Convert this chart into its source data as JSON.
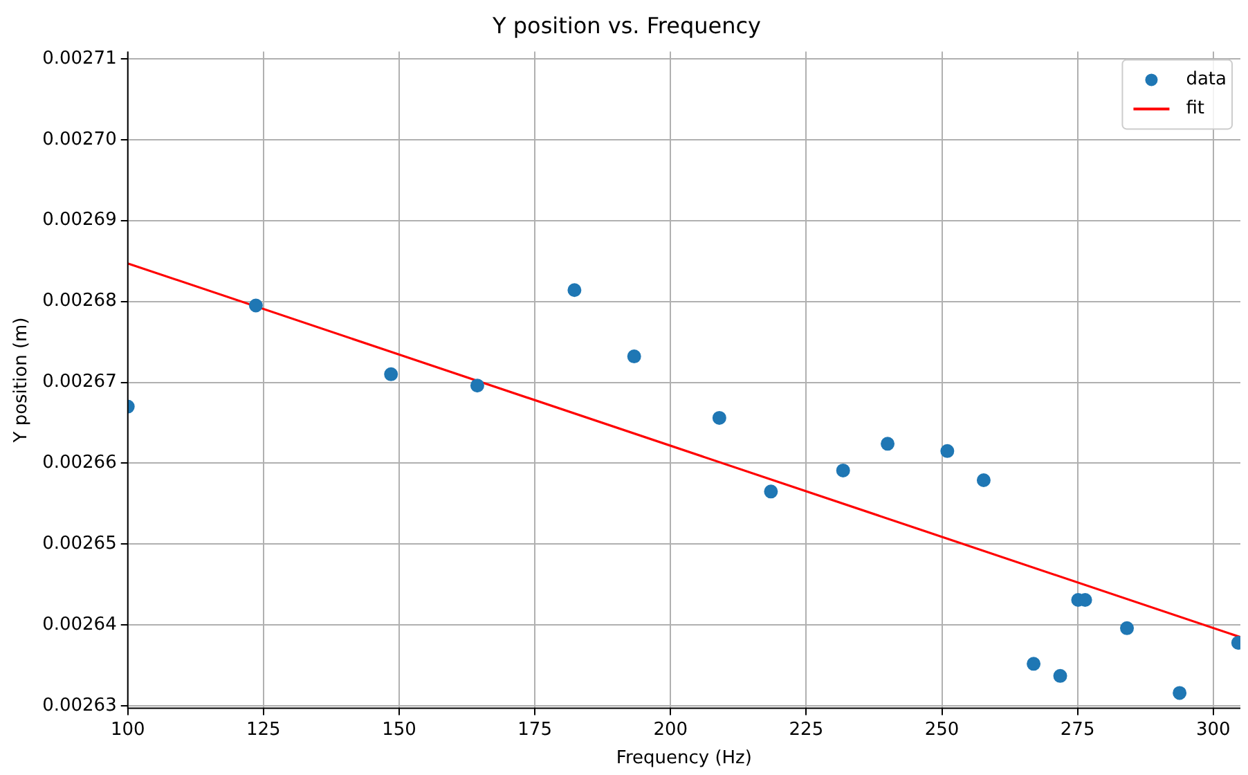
{
  "chart_data": {
    "type": "scatter",
    "title": "Y position vs. Frequency",
    "xlabel": "Frequency (Hz)",
    "ylabel": "Y position (m)",
    "xlim": [
      100,
      305
    ],
    "xticks": [
      100,
      125,
      150,
      175,
      200,
      225,
      250,
      275,
      300
    ],
    "ylim": [
      0.0026297,
      0.0027109
    ],
    "yticks": [
      {
        "value": 0.00263,
        "label": "0.00263"
      },
      {
        "value": 0.00264,
        "label": "0.00264"
      },
      {
        "value": 0.00265,
        "label": "0.00265"
      },
      {
        "value": 0.00266,
        "label": "0.00266"
      },
      {
        "value": 0.00267,
        "label": "0.00267"
      },
      {
        "value": 0.00268,
        "label": "0.00268"
      },
      {
        "value": 0.00269,
        "label": "0.00269"
      },
      {
        "value": 0.0027,
        "label": "0.00270"
      },
      {
        "value": 0.00271,
        "label": "0.00271"
      }
    ],
    "grid": true,
    "legend": "top right",
    "series": [
      {
        "name": "data",
        "type": "scatter",
        "marker": "circle",
        "color": "#1f77b4",
        "x": [
          100,
          123.6,
          148.5,
          164.4,
          182.3,
          193.3,
          209.0,
          218.5,
          231.8,
          240.0,
          251.0,
          257.7,
          266.9,
          271.8,
          275.1,
          276.4,
          284.1,
          293.8,
          304.6
        ],
        "values": [
          0.002667,
          0.0026795,
          0.002671,
          0.0026696,
          0.0026814,
          0.0026732,
          0.0026656,
          0.0026565,
          0.0026591,
          0.0026624,
          0.0026615,
          0.0026579,
          0.0026352,
          0.0026337,
          0.0026431,
          0.0026431,
          0.0026396,
          0.0026316,
          0.0026378
        ]
      },
      {
        "name": "fit",
        "type": "line",
        "color": "#ff0000",
        "x": [
          100,
          305
        ],
        "values": [
          0.0026847,
          0.0026385
        ]
      }
    ]
  }
}
